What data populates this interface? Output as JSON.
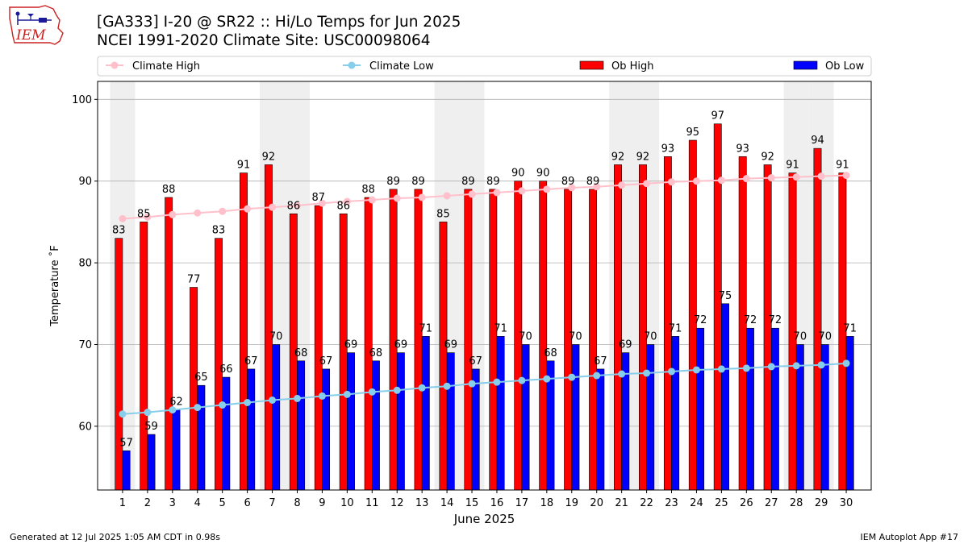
{
  "header": {
    "title": "[GA333] I-20 @ SR22 :: Hi/Lo Temps for Jun 2025",
    "subtitle": "NCEI 1991-2020 Climate Site: USC00098064"
  },
  "logo": {
    "text": "IEM",
    "icon": "iem-iowa-logo"
  },
  "footer": {
    "left": "Generated at 12 Jul 2025 1:05 AM CDT in 0.98s",
    "right": "IEM Autoplot App #17"
  },
  "colors": {
    "ob_high": "#ff0000",
    "ob_low": "#0000ff",
    "climate_high": "#ffc0cb",
    "climate_low": "#87ceeb",
    "weekend_shade": "#efefef",
    "grid": "#b0b0b0"
  },
  "chart_data": {
    "type": "bar",
    "xlabel": "June 2025",
    "ylabel": "Temperature ˚F",
    "ylim": [
      52.2,
      102.2
    ],
    "yticks": [
      60,
      70,
      80,
      90,
      100
    ],
    "grid": true,
    "legend_position": "top",
    "categories": [
      "1",
      "2",
      "3",
      "4",
      "5",
      "6",
      "7",
      "8",
      "9",
      "10",
      "11",
      "12",
      "13",
      "14",
      "15",
      "16",
      "17",
      "18",
      "19",
      "20",
      "21",
      "22",
      "23",
      "24",
      "25",
      "26",
      "27",
      "28",
      "29",
      "30"
    ],
    "weekend_days": [
      1,
      7,
      8,
      14,
      15,
      21,
      22,
      28,
      29
    ],
    "series": [
      {
        "name": "Ob High",
        "kind": "bar",
        "values": [
          83,
          85,
          88,
          77,
          83,
          91,
          92,
          86,
          87,
          86,
          88,
          89,
          89,
          85,
          89,
          89,
          90,
          90,
          89,
          89,
          92,
          92,
          93,
          95,
          97,
          93,
          92,
          91,
          94,
          91
        ]
      },
      {
        "name": "Ob Low",
        "kind": "bar",
        "values": [
          57,
          59,
          62,
          65,
          66,
          67,
          70,
          68,
          67,
          69,
          68,
          69,
          71,
          69,
          67,
          71,
          70,
          68,
          70,
          67,
          69,
          70,
          71,
          72,
          75,
          72,
          72,
          70,
          70,
          71
        ]
      },
      {
        "name": "Climate High",
        "kind": "line",
        "values": [
          85.4,
          85.6,
          85.9,
          86.1,
          86.3,
          86.6,
          86.8,
          87.0,
          87.3,
          87.5,
          87.7,
          87.9,
          88.0,
          88.2,
          88.4,
          88.6,
          88.8,
          89.0,
          89.2,
          89.3,
          89.5,
          89.7,
          89.9,
          90.0,
          90.1,
          90.3,
          90.4,
          90.5,
          90.6,
          90.7
        ]
      },
      {
        "name": "Climate Low",
        "kind": "line",
        "values": [
          61.5,
          61.7,
          62.0,
          62.3,
          62.6,
          62.9,
          63.2,
          63.4,
          63.7,
          63.9,
          64.2,
          64.4,
          64.7,
          64.9,
          65.2,
          65.4,
          65.6,
          65.8,
          66.0,
          66.2,
          66.4,
          66.5,
          66.7,
          66.9,
          67.0,
          67.1,
          67.3,
          67.4,
          67.5,
          67.7
        ]
      }
    ]
  }
}
